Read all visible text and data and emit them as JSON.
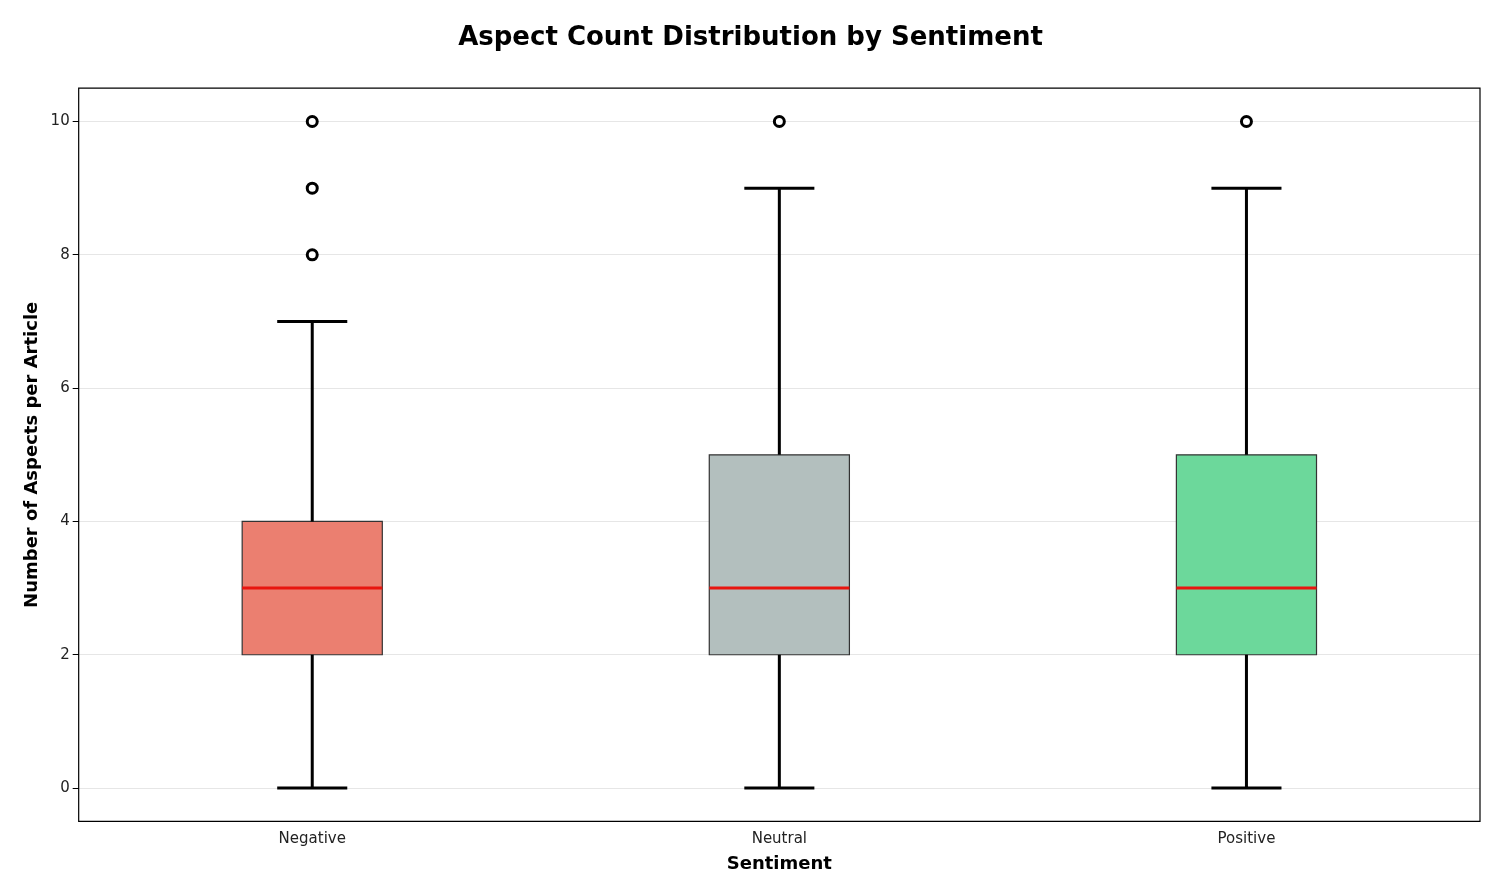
{
  "chart_data": {
    "type": "box",
    "title": "Aspect Count Distribution by Sentiment",
    "xlabel": "Sentiment",
    "ylabel": "Number of Aspects per Article",
    "categories": [
      "Negative",
      "Neutral",
      "Positive"
    ],
    "boxes": [
      {
        "low": 0,
        "q1": 2,
        "median": 3,
        "q3": 4,
        "high": 7,
        "outliers": [
          8,
          9,
          10
        ]
      },
      {
        "low": 0,
        "q1": 2,
        "median": 3,
        "q3": 5,
        "high": 9,
        "outliers": [
          10
        ]
      },
      {
        "low": 0,
        "q1": 2,
        "median": 3,
        "q3": 5,
        "high": 9,
        "outliers": [
          10
        ]
      }
    ],
    "colors": [
      "#eb7f70",
      "#b3bfbe",
      "#6cd89b"
    ],
    "ylim": [
      -0.5,
      10.5
    ],
    "yticks": [
      0,
      2,
      4,
      6,
      8,
      10
    ],
    "grid": "y",
    "marker": "circle"
  }
}
